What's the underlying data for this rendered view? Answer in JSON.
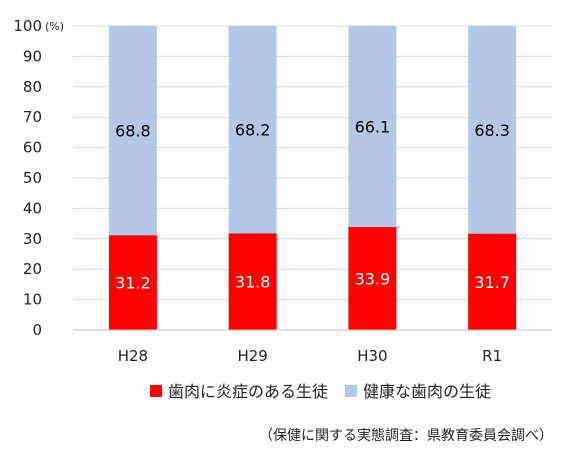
{
  "chart_data": {
    "type": "bar",
    "stacked": true,
    "categories": [
      "H28",
      "H29",
      "H30",
      "R1"
    ],
    "series": [
      {
        "name": "歯肉に炎症のある生徒",
        "values": [
          31.2,
          31.8,
          33.9,
          31.7
        ],
        "color": "#ff0000",
        "label_color": "#ffffff"
      },
      {
        "name": "健康な歯肉の生徒",
        "values": [
          68.8,
          68.2,
          66.1,
          68.3
        ],
        "color": "#b4c7e7",
        "label_color": "#000000"
      }
    ],
    "ylim": [
      0,
      100
    ],
    "yticks": [
      "0",
      "10",
      "20",
      "30",
      "40",
      "50",
      "60",
      "70",
      "80",
      "90",
      "100"
    ],
    "y_unit": "(%)",
    "grid": true,
    "legend_position": "bottom",
    "source_note": "（保健に関する実態調査：県教育委員会調べ）"
  }
}
